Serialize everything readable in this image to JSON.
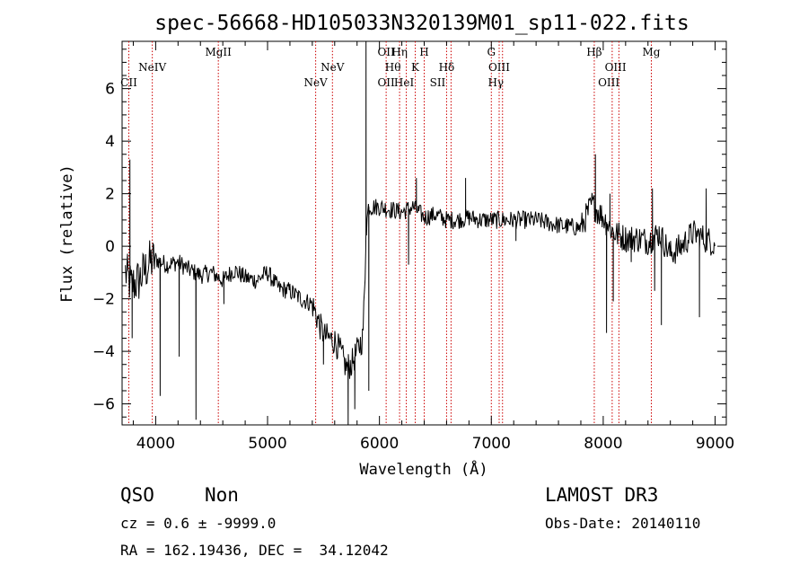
{
  "chart_data": {
    "type": "line",
    "title": "spec-56668-HD105033N320139M01_sp11-022.fits",
    "xlabel": "Wavelength (Å)",
    "ylabel": "Flux (relative)",
    "xlim": [
      3700,
      9100
    ],
    "ylim": [
      -6.8,
      7.8
    ],
    "xticks": [
      4000,
      5000,
      6000,
      7000,
      8000,
      9000
    ],
    "yticks": [
      -6,
      -4,
      -2,
      0,
      2,
      4,
      6
    ],
    "spectrum_anchors": [
      [
        3730,
        -1.0
      ],
      [
        3780,
        -1.5
      ],
      [
        3850,
        -1.3
      ],
      [
        3950,
        -0.6
      ],
      [
        4000,
        -0.5
      ],
      [
        4100,
        -0.7
      ],
      [
        4200,
        -0.6
      ],
      [
        4300,
        -0.9
      ],
      [
        4400,
        -1.1
      ],
      [
        4500,
        -1.0
      ],
      [
        4600,
        -1.3
      ],
      [
        4700,
        -0.9
      ],
      [
        4800,
        -1.2
      ],
      [
        4900,
        -1.3
      ],
      [
        5000,
        -1.0
      ],
      [
        5100,
        -1.6
      ],
      [
        5200,
        -1.7
      ],
      [
        5300,
        -2.0
      ],
      [
        5400,
        -2.2
      ],
      [
        5450,
        -2.8
      ],
      [
        5500,
        -3.4
      ],
      [
        5600,
        -3.6
      ],
      [
        5650,
        -4.0
      ],
      [
        5700,
        -4.6
      ],
      [
        5750,
        -4.5
      ],
      [
        5800,
        -4.0
      ],
      [
        5850,
        -3.5
      ],
      [
        5870,
        -1.5
      ],
      [
        5880,
        0.5
      ],
      [
        5900,
        1.5
      ],
      [
        6000,
        1.5
      ],
      [
        6100,
        1.4
      ],
      [
        6200,
        1.3
      ],
      [
        6300,
        1.5
      ],
      [
        6400,
        1.1
      ],
      [
        6500,
        1.2
      ],
      [
        6600,
        1.0
      ],
      [
        6700,
        1.0
      ],
      [
        6800,
        1.1
      ],
      [
        6900,
        1.0
      ],
      [
        7000,
        1.0
      ],
      [
        7200,
        1.0
      ],
      [
        7400,
        1.0
      ],
      [
        7600,
        0.8
      ],
      [
        7800,
        0.7
      ],
      [
        7900,
        1.6
      ],
      [
        8000,
        1.1
      ],
      [
        8100,
        0.5
      ],
      [
        8200,
        0.3
      ],
      [
        8300,
        0.3
      ],
      [
        8400,
        0.2
      ],
      [
        8500,
        0.5
      ],
      [
        8600,
        -0.3
      ],
      [
        8700,
        0.0
      ],
      [
        8800,
        0.5
      ],
      [
        8900,
        0.3
      ],
      [
        9000,
        0.1
      ]
    ],
    "spikes": [
      [
        3770,
        3.3
      ],
      [
        3790,
        -3.5
      ],
      [
        4040,
        -5.7
      ],
      [
        4210,
        -4.2
      ],
      [
        4360,
        -6.6
      ],
      [
        4610,
        -2.2
      ],
      [
        5500,
        -4.5
      ],
      [
        5720,
        -6.8
      ],
      [
        5780,
        -6.2
      ],
      [
        5880,
        7.8
      ],
      [
        5905,
        -5.5
      ],
      [
        6260,
        -0.7
      ],
      [
        6330,
        2.6
      ],
      [
        6770,
        2.6
      ],
      [
        7220,
        0.2
      ],
      [
        7930,
        3.5
      ],
      [
        8030,
        -3.3
      ],
      [
        8060,
        2.0
      ],
      [
        8090,
        -2.1
      ],
      [
        8250,
        -0.6
      ],
      [
        8440,
        2.2
      ],
      [
        8460,
        -1.7
      ],
      [
        8520,
        -3.0
      ],
      [
        8860,
        -2.7
      ],
      [
        8920,
        2.2
      ]
    ],
    "emission_lines": [
      {
        "label": "CII",
        "wave": 3760,
        "row": 3
      },
      {
        "label": "NeIV",
        "wave": 3970,
        "row": 2
      },
      {
        "label": "MgII",
        "wave": 4560,
        "row": 1
      },
      {
        "label": "NeV",
        "wave": 5430,
        "row": 3
      },
      {
        "label": "NeV",
        "wave": 5580,
        "row": 2
      },
      {
        "label": "OII",
        "wave": 6060,
        "row": 3
      },
      {
        "label": "OII",
        "wave": 6060,
        "row": 1
      },
      {
        "label": "Hη",
        "wave": 6180,
        "row": 1
      },
      {
        "label": "Hθ",
        "wave": 6120,
        "row": 2
      },
      {
        "label": "HeI",
        "wave": 6220,
        "row": 3
      },
      {
        "label": "K",
        "wave": 6320,
        "row": 2
      },
      {
        "label": "H",
        "wave": 6400,
        "row": 1
      },
      {
        "label": "Hδ",
        "wave": 6600,
        "row": 2
      },
      {
        "label": "SII",
        "wave": 6520,
        "row": 3
      },
      {
        "label": "G",
        "wave": 7000,
        "row": 1
      },
      {
        "label": "OIII",
        "wave": 7070,
        "row": 2
      },
      {
        "label": "Hγ",
        "wave": 7040,
        "row": 3
      },
      {
        "label": "Hβ",
        "wave": 7920,
        "row": 1
      },
      {
        "label": "OIII",
        "wave": 8050,
        "row": 3
      },
      {
        "label": "OIII",
        "wave": 8110,
        "row": 2
      },
      {
        "label": "Mg",
        "wave": 8430,
        "row": 1
      }
    ],
    "line_marks_at": [
      3760,
      3970,
      4560,
      5430,
      5580,
      6060,
      6180,
      6240,
      6320,
      6400,
      6600,
      6640,
      7000,
      7070,
      7100,
      7920,
      8080,
      8140,
      8430
    ],
    "colors": {
      "axis": "#000000",
      "spectrum": "#000000",
      "emission_lines": "#cc0000"
    }
  },
  "info": {
    "class": "QSO",
    "subclass": "Non",
    "cz": "cz = 0.6 ± -9999.0",
    "coords": "RA = 162.19436, DEC =  34.12042",
    "survey": "LAMOST DR3",
    "obs_date": "Obs-Date: 20140110"
  }
}
